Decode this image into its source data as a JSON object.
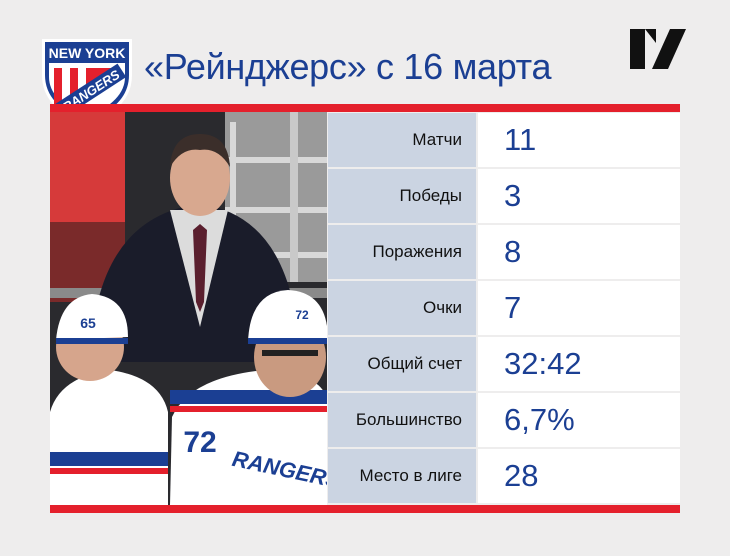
{
  "header": {
    "title": "«Рейнджерс» с 16 марта"
  },
  "logo": {
    "line1": "NEW YORK",
    "line2": "RANGERS",
    "colors": {
      "blue": "#1b3f93",
      "red": "#e4202c",
      "white": "#ffffff"
    }
  },
  "photo": {
    "jersey_numbers": [
      "65",
      "72",
      "72"
    ],
    "jersey_text": "RANGERS"
  },
  "stats": [
    {
      "label": "Матчи",
      "value": "11"
    },
    {
      "label": "Победы",
      "value": "3"
    },
    {
      "label": "Поражения",
      "value": "8"
    },
    {
      "label": "Очки",
      "value": "7"
    },
    {
      "label": "Общий счет",
      "value": "32:42"
    },
    {
      "label": "Большинство",
      "value": "6,7%"
    },
    {
      "label": "Место в лиге",
      "value": "28"
    }
  ],
  "colors": {
    "accent_red": "#e4202c",
    "title_blue": "#1b3f93",
    "label_bg": "#cbd4e2",
    "value_bg": "#ffffff",
    "page_bg": "#eeeded"
  }
}
